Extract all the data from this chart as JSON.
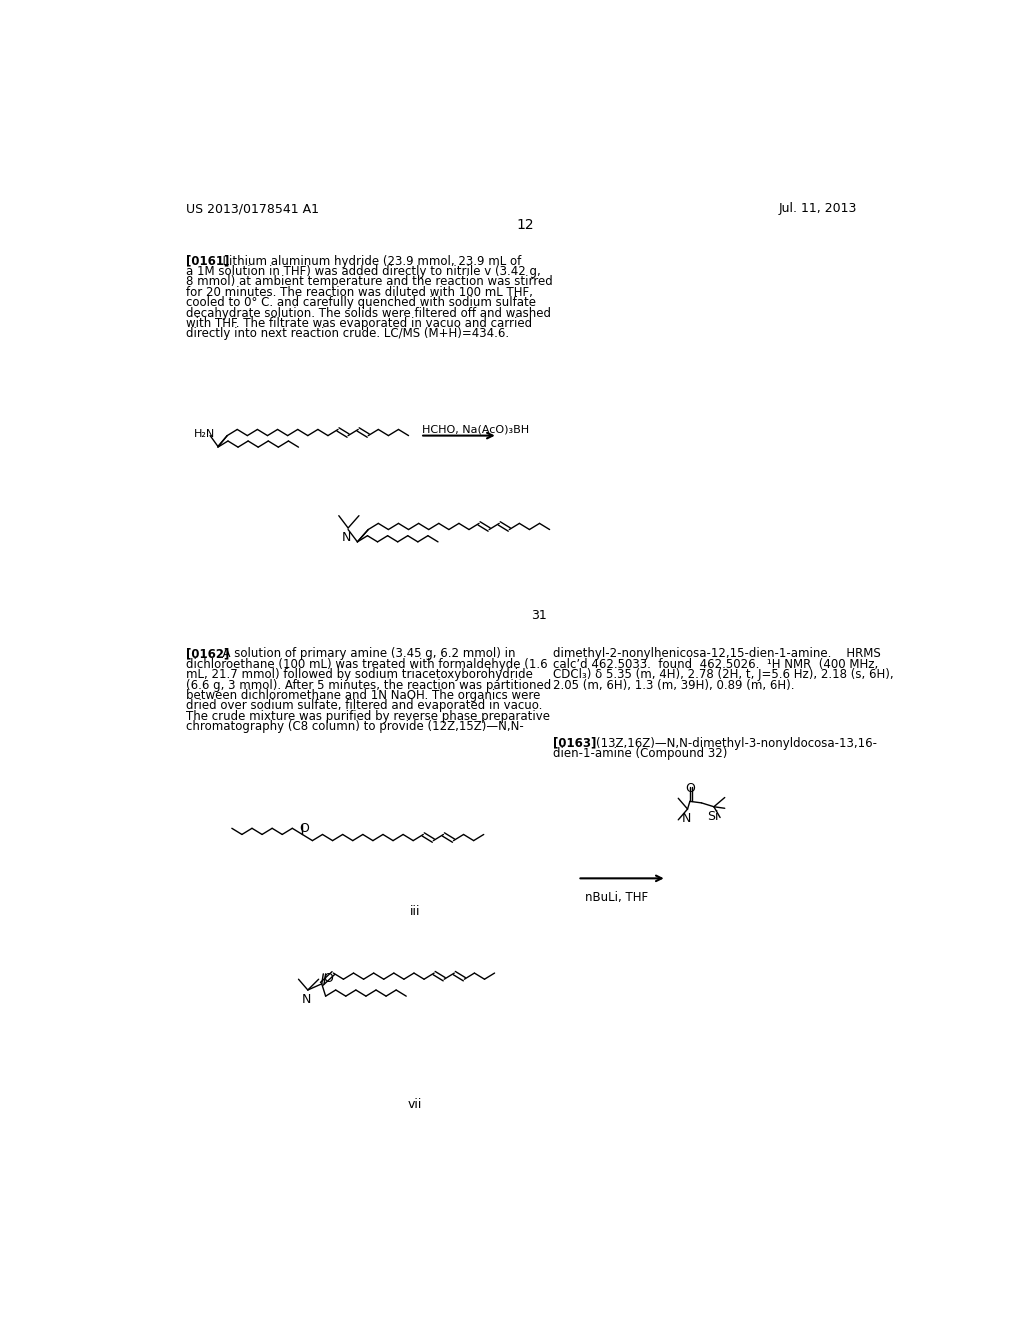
{
  "bg_color": "#ffffff",
  "header_left": "US 2013/0178541 A1",
  "header_right": "Jul. 11, 2013",
  "page_number": "12",
  "para_0161_bold": "[0161]",
  "para_0161_lines": [
    "  Lithium aluminum hydride (23.9 mmol, 23.9 mL of",
    "a 1M solution in THF) was added directly to nitrile v (3.42 g,",
    "8 mmol) at ambient temperature and the reaction was stirred",
    "for 20 minutes. The reaction was diluted with 100 mL THF,",
    "cooled to 0° C. and carefully quenched with sodium sulfate",
    "decahydrate solution. The solids were filtered off and washed",
    "with THF. The filtrate was evaporated in vacuo and carried",
    "directly into next reaction crude. LC/MS (M+H)=434.6."
  ],
  "arrow1_label": "HCHO, Na(AcO)₃BH",
  "compound31_label": "31",
  "para_0162_bold": "[0162]",
  "para_0162_left": [
    "  A solution of primary amine (3.45 g, 6.2 mmol) in",
    "dichloroethane (100 mL) was treated with formaldehyde (1.6",
    "mL, 21.7 mmol) followed by sodium triacetoxyborohydride",
    "(6.6 g, 3 mmol). After 5 minutes, the reaction was partitioned",
    "between dichloromethane and 1N NaOH. The organics were",
    "dried over sodium sulfate, filtered and evaporated in vacuo.",
    "The crude mixture was purified by reverse phase preparative",
    "chromatography (C8 column) to provide (12Z,15Z)—N,N-"
  ],
  "para_0162_right": [
    "dimethyl-2-nonylhenicosa-12,15-dien-1-amine.    HRMS",
    "calc’d 462.5033.  found  462.5026.  ¹H NMR  (400 MHz,",
    "CDCl₃) δ 5.35 (m, 4H), 2.78 (2H, t, J=5.6 Hz), 2.18 (s, 6H),",
    "2.05 (m, 6H), 1.3 (m, 39H), 0.89 (m, 6H)."
  ],
  "para_0163_bold": "[0163]",
  "para_0163_right_lines": [
    "    (13Z,16Z)—N,N-dimethyl-3-nonyldocosa-13,16-",
    "dien-1-amine (Compound 32)"
  ],
  "arrow2_label": "nBuLi, THF",
  "compound_iii_label": "iii",
  "compound_vii_label": "vii"
}
